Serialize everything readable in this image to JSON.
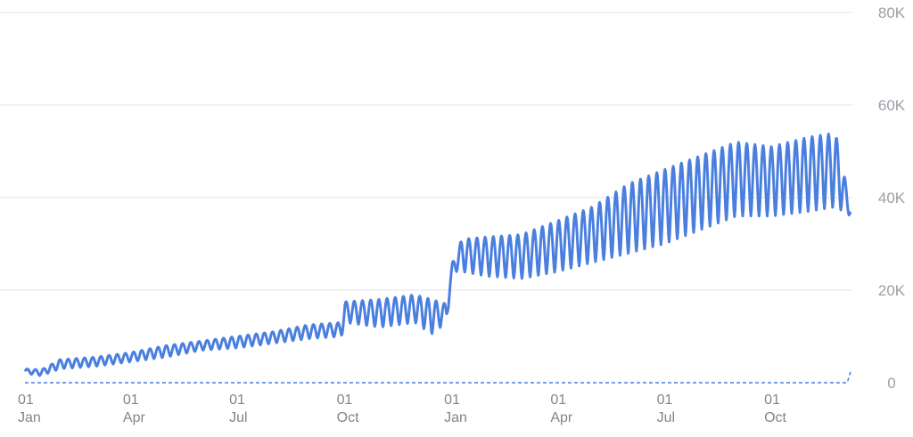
{
  "chart_data": {
    "type": "line",
    "title": "",
    "xlabel": "",
    "ylabel": "",
    "ylim": [
      0,
      80000
    ],
    "y_ticks": [
      {
        "value": 0,
        "label": "0"
      },
      {
        "value": 20000,
        "label": "20K"
      },
      {
        "value": 40000,
        "label": "40K"
      },
      {
        "value": 60000,
        "label": "60K"
      },
      {
        "value": 80000,
        "label": "80K"
      }
    ],
    "x_ticks": [
      {
        "date": "2019-01-01",
        "day": "01",
        "month": "Jan"
      },
      {
        "date": "2019-04-01",
        "day": "01",
        "month": "Apr"
      },
      {
        "date": "2019-07-01",
        "day": "01",
        "month": "Jul"
      },
      {
        "date": "2019-10-01",
        "day": "01",
        "month": "Oct"
      },
      {
        "date": "2020-01-01",
        "day": "01",
        "month": "Jan"
      },
      {
        "date": "2020-04-01",
        "day": "01",
        "month": "Apr"
      },
      {
        "date": "2020-07-01",
        "day": "01",
        "month": "Jul"
      },
      {
        "date": "2020-10-01",
        "day": "01",
        "month": "Oct"
      }
    ],
    "grid": true,
    "y_axis_position": "right",
    "colors": {
      "series": "#4a7fe0",
      "grid": "#e3e3e3",
      "tick_text": "#9aa0a6"
    },
    "series": [
      {
        "style": "solid",
        "weekly_pattern": true,
        "envelope": [
          {
            "date": "2019-01-01",
            "low": 2000,
            "high": 3000
          },
          {
            "date": "2019-01-15",
            "low": 1500,
            "high": 2800
          },
          {
            "date": "2019-01-31",
            "low": 3000,
            "high": 5000
          },
          {
            "date": "2019-03-01",
            "low": 3500,
            "high": 5500
          },
          {
            "date": "2019-04-01",
            "low": 4500,
            "high": 6500
          },
          {
            "date": "2019-05-01",
            "low": 5500,
            "high": 8000
          },
          {
            "date": "2019-06-01",
            "low": 7000,
            "high": 9000
          },
          {
            "date": "2019-07-01",
            "low": 7500,
            "high": 10000
          },
          {
            "date": "2019-08-01",
            "low": 8500,
            "high": 11000
          },
          {
            "date": "2019-09-01",
            "low": 9500,
            "high": 12500
          },
          {
            "date": "2019-09-29",
            "low": 10000,
            "high": 13000
          },
          {
            "date": "2019-10-02",
            "low": 13000,
            "high": 17500
          },
          {
            "date": "2019-11-01",
            "low": 12000,
            "high": 18000
          },
          {
            "date": "2019-12-01",
            "low": 13000,
            "high": 19000
          },
          {
            "date": "2019-12-15",
            "low": 10500,
            "high": 18000
          },
          {
            "date": "2019-12-28",
            "low": 13000,
            "high": 17000
          },
          {
            "date": "2020-01-02",
            "low": 24000,
            "high": 26000
          },
          {
            "date": "2020-01-10",
            "low": 24000,
            "high": 31000
          },
          {
            "date": "2020-02-01",
            "low": 23000,
            "high": 31500
          },
          {
            "date": "2020-03-01",
            "low": 22500,
            "high": 32000
          },
          {
            "date": "2020-04-01",
            "low": 24000,
            "high": 35000
          },
          {
            "date": "2020-05-01",
            "low": 26000,
            "high": 38000
          },
          {
            "date": "2020-06-01",
            "low": 28000,
            "high": 43000
          },
          {
            "date": "2020-07-01",
            "low": 30000,
            "high": 46000
          },
          {
            "date": "2020-08-01",
            "low": 33000,
            "high": 49000
          },
          {
            "date": "2020-09-01",
            "low": 36000,
            "high": 52000
          },
          {
            "date": "2020-10-01",
            "low": 36000,
            "high": 51000
          },
          {
            "date": "2020-11-01",
            "low": 37000,
            "high": 53000
          },
          {
            "date": "2020-11-25",
            "low": 38000,
            "high": 54000
          },
          {
            "date": "2020-12-08",
            "low": 36000,
            "high": 38000
          }
        ]
      },
      {
        "style": "dashed",
        "points": [
          {
            "date": "2019-01-01",
            "value": 0
          },
          {
            "date": "2020-12-05",
            "value": 0
          },
          {
            "date": "2020-12-08",
            "value": 2500
          }
        ]
      }
    ]
  }
}
